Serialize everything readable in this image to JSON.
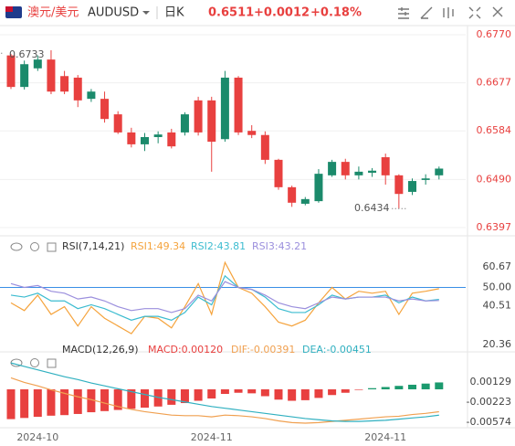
{
  "header": {
    "pair": "澳元/美元",
    "symbol": "AUDUSD",
    "period": "日K",
    "price": "0.6511",
    "change": "+0.0012",
    "change_pct": "+0.18%"
  },
  "chart_data": [
    {
      "type": "candlestick",
      "up_color": "#1b8a6b",
      "down_color": "#e8403f",
      "grid": true,
      "categories": [
        null,
        null,
        "2024-10",
        null,
        null,
        null,
        null,
        null,
        null,
        null,
        null,
        null,
        null,
        null,
        null,
        "2024-11",
        null,
        null,
        null,
        null,
        null,
        null,
        null,
        null,
        null,
        null,
        null,
        null,
        "2024-11",
        null,
        null,
        null,
        null
      ],
      "open": [
        0.673,
        0.6669,
        0.6705,
        0.6722,
        0.669,
        0.6687,
        0.6646,
        0.6646,
        0.6616,
        0.6581,
        0.6558,
        0.6572,
        0.6581,
        0.6581,
        0.6643,
        0.6643,
        0.6568,
        0.6687,
        0.6584,
        0.6576,
        0.6528,
        0.6475,
        0.6443,
        0.6448,
        0.6498,
        0.6524,
        0.6498,
        0.6503,
        0.6533,
        0.6498,
        0.6466,
        0.6489,
        0.6498
      ],
      "high": [
        0.6733,
        0.672,
        0.673,
        0.674,
        0.67,
        0.6692,
        0.6665,
        0.666,
        0.6622,
        0.659,
        0.658,
        0.6583,
        0.6588,
        0.662,
        0.665,
        0.665,
        0.67,
        0.669,
        0.6595,
        0.6583,
        0.653,
        0.6478,
        0.6456,
        0.651,
        0.6528,
        0.653,
        0.6515,
        0.6512,
        0.654,
        0.65,
        0.6492,
        0.65,
        0.6515
      ],
      "low": [
        0.6665,
        0.6664,
        0.67,
        0.6655,
        0.6655,
        0.663,
        0.664,
        0.66,
        0.6578,
        0.6552,
        0.6545,
        0.656,
        0.655,
        0.6575,
        0.6575,
        0.6505,
        0.6563,
        0.6576,
        0.657,
        0.652,
        0.647,
        0.6437,
        0.644,
        0.6445,
        0.6495,
        0.649,
        0.649,
        0.6495,
        0.648,
        0.6434,
        0.646,
        0.648,
        0.649
      ],
      "close": [
        0.6669,
        0.6713,
        0.6722,
        0.666,
        0.666,
        0.6643,
        0.666,
        0.6607,
        0.6581,
        0.6558,
        0.6572,
        0.6577,
        0.6554,
        0.6616,
        0.6581,
        0.6563,
        0.6687,
        0.6581,
        0.6576,
        0.6528,
        0.6475,
        0.6445,
        0.6452,
        0.6501,
        0.6524,
        0.6498,
        0.6505,
        0.6507,
        0.6498,
        0.6462,
        0.6487,
        0.6492,
        0.6511
      ],
      "ylim": [
        0.6381,
        0.67877
      ],
      "yticks": [
        {
          "value": 0.677,
          "label": "0.6770"
        },
        {
          "value": 0.6677,
          "label": "0.6677"
        },
        {
          "value": 0.6584,
          "label": "0.6584"
        },
        {
          "value": 0.649,
          "label": "0.6490"
        },
        {
          "value": 0.6397,
          "label": "0.6397"
        }
      ],
      "annotations": [
        {
          "value": 0.6733,
          "label": "0.6733"
        },
        {
          "value": 0.6434,
          "label": "0.6434"
        }
      ]
    },
    {
      "type": "line",
      "title": "RSI(7,14,21)",
      "ylim": [
        16.57,
        65.41
      ],
      "yticks": [
        60.67,
        {
          "value": 50,
          "label": "50.00"
        },
        40.51,
        20.36
      ],
      "hline": {
        "value": 50,
        "color": "#3a8ee6"
      },
      "series": [
        {
          "name": "RSI1:49.34",
          "color": "#f5a33c",
          "values": [
            42,
            38,
            46,
            36,
            40,
            30,
            40,
            34,
            30,
            26,
            35,
            34,
            29,
            40,
            52,
            36,
            63,
            50,
            47,
            40,
            32,
            30,
            33,
            42,
            50,
            44,
            48,
            47,
            48,
            36,
            47,
            48,
            49.34
          ]
        },
        {
          "name": "RSI2:43.81",
          "color": "#3cbcd0",
          "values": [
            46,
            45,
            47,
            43,
            43,
            39,
            41,
            39,
            36,
            33,
            35,
            35,
            33,
            37,
            45,
            41,
            56,
            50,
            49,
            45,
            39,
            37,
            37,
            41,
            46,
            44,
            45,
            45,
            46,
            42,
            45,
            43,
            43.81
          ]
        },
        {
          "name": "RSI3:43.21",
          "color": "#9b8fdd",
          "values": [
            52,
            50,
            51,
            48,
            47,
            44,
            45,
            43,
            40,
            38,
            39,
            39,
            37,
            39,
            46,
            43,
            53,
            50,
            49,
            46,
            42,
            40,
            39,
            42,
            45,
            44,
            45,
            45,
            45,
            43,
            44,
            43,
            43.21
          ]
        }
      ]
    },
    {
      "type": "macd",
      "title": "MACD(12,26,9)",
      "ylim": [
        -0.0067,
        0.00494
      ],
      "yticks": [
        0.00129,
        -0.00223,
        -0.00574
      ],
      "series": [
        {
          "name": "MACD:0.00120",
          "type": "bar",
          "up_color": "#1b9a6e",
          "down_color": "#e8403f",
          "values": [
            -0.0052,
            -0.005,
            -0.0048,
            -0.0046,
            -0.0045,
            -0.0043,
            -0.004,
            -0.0038,
            -0.0036,
            -0.0034,
            -0.0032,
            -0.003,
            -0.0027,
            -0.0024,
            -0.002,
            -0.0016,
            -0.0008,
            -0.0006,
            -0.0007,
            -0.0012,
            -0.0018,
            -0.002,
            -0.0019,
            -0.0015,
            -0.001,
            -0.0006,
            -0.0001,
            0.0002,
            0.0004,
            0.0006,
            0.0008,
            0.001,
            0.0012
          ]
        },
        {
          "name": "DIF:-0.00391",
          "type": "line",
          "color": "#f0a050",
          "values": [
            0.002,
            0.0012,
            0.0006,
            -0.0001,
            -0.0007,
            -0.0013,
            -0.0018,
            -0.0024,
            -0.003,
            -0.0035,
            -0.0039,
            -0.0042,
            -0.0045,
            -0.0046,
            -0.0046,
            -0.0048,
            -0.0045,
            -0.0046,
            -0.0048,
            -0.0051,
            -0.0055,
            -0.0058,
            -0.0059,
            -0.0058,
            -0.0056,
            -0.0054,
            -0.0052,
            -0.005,
            -0.0048,
            -0.0047,
            -0.0044,
            -0.0042,
            -0.00391
          ]
        },
        {
          "name": "DEA:-0.00451",
          "type": "line",
          "color": "#30b0c0",
          "values": [
            0.0046,
            0.004,
            0.0034,
            0.0028,
            0.0022,
            0.0017,
            0.0011,
            0.0006,
            0.0001,
            -0.0004,
            -0.0009,
            -0.0014,
            -0.0018,
            -0.0022,
            -0.0026,
            -0.003,
            -0.0033,
            -0.0036,
            -0.0039,
            -0.0042,
            -0.0045,
            -0.0048,
            -0.0051,
            -0.0053,
            -0.0055,
            -0.0056,
            -0.0056,
            -0.0055,
            -0.0054,
            -0.0052,
            -0.005,
            -0.0048,
            -0.00451
          ]
        }
      ]
    }
  ]
}
